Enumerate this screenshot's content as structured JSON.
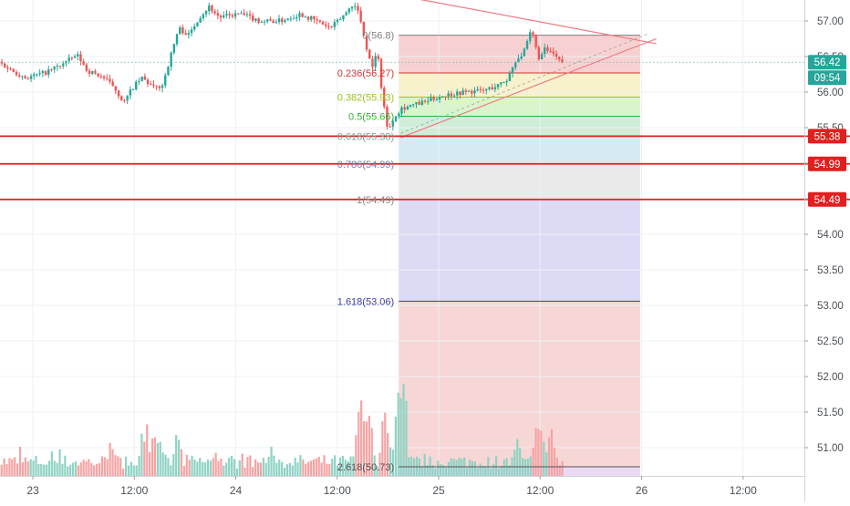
{
  "chart_data": {
    "type": "candlestick",
    "title": "",
    "xlabel": "",
    "ylabel": "",
    "ylim": [
      50.6,
      57.35
    ],
    "grid": true,
    "x_ticks": [
      {
        "label": "23",
        "t": 0.167
      },
      {
        "label": "12:00",
        "t": 0.667
      },
      {
        "label": "24",
        "t": 1.167
      },
      {
        "label": "12:00",
        "t": 1.667
      },
      {
        "label": "25",
        "t": 2.167
      },
      {
        "label": "12:00",
        "t": 2.667
      },
      {
        "label": "26",
        "t": 3.167
      },
      {
        "label": "12:00",
        "t": 3.667
      }
    ],
    "y_ticks": [
      "57.00",
      "56.50",
      "56.00",
      "55.50",
      "55.00",
      "54.50",
      "54.00",
      "53.50",
      "53.00",
      "52.50",
      "52.00",
      "51.50",
      "51.00"
    ],
    "price_anchors": [
      [
        0.0,
        56.45
      ],
      [
        0.08,
        56.3
      ],
      [
        0.15,
        56.2
      ],
      [
        0.25,
        56.28
      ],
      [
        0.33,
        56.4
      ],
      [
        0.4,
        56.52
      ],
      [
        0.45,
        56.3
      ],
      [
        0.52,
        56.22
      ],
      [
        0.58,
        56.08
      ],
      [
        0.63,
        55.85
      ],
      [
        0.67,
        56.05
      ],
      [
        0.72,
        56.2
      ],
      [
        0.78,
        56.05
      ],
      [
        0.82,
        56.1
      ],
      [
        0.85,
        56.4
      ],
      [
        0.9,
        56.9
      ],
      [
        0.95,
        56.8
      ],
      [
        1.0,
        57.05
      ],
      [
        1.05,
        57.2
      ],
      [
        1.1,
        57.05
      ],
      [
        1.2,
        57.1
      ],
      [
        1.3,
        57.0
      ],
      [
        1.4,
        57.0
      ],
      [
        1.5,
        57.1
      ],
      [
        1.58,
        57.0
      ],
      [
        1.65,
        56.9
      ],
      [
        1.72,
        57.1
      ],
      [
        1.76,
        57.25
      ],
      [
        1.79,
        57.1
      ],
      [
        1.82,
        56.7
      ],
      [
        1.85,
        56.35
      ],
      [
        1.88,
        56.55
      ],
      [
        1.9,
        56.05
      ],
      [
        1.93,
        55.45
      ],
      [
        1.96,
        55.65
      ],
      [
        2.0,
        55.78
      ],
      [
        2.1,
        55.85
      ],
      [
        2.2,
        55.95
      ],
      [
        2.3,
        56.0
      ],
      [
        2.4,
        56.02
      ],
      [
        2.48,
        56.1
      ],
      [
        2.52,
        56.18
      ],
      [
        2.56,
        56.45
      ],
      [
        2.6,
        56.55
      ],
      [
        2.64,
        56.88
      ],
      [
        2.66,
        56.62
      ],
      [
        2.68,
        56.45
      ],
      [
        2.7,
        56.6
      ],
      [
        2.74,
        56.55
      ],
      [
        2.78,
        56.42
      ]
    ],
    "last_price": "56.42",
    "countdown": "09:54",
    "colors": {
      "up": "#26a69a",
      "down": "#ef5350",
      "up_volume": "#8fd3c4",
      "down_volume": "#f5a3a3",
      "level_line": "#e21f1f",
      "pattern": "#ef7a85"
    },
    "horizontal_levels": [
      {
        "price": 55.38,
        "label": "55.38"
      },
      {
        "price": 54.99,
        "label": "54.99"
      },
      {
        "price": 54.49,
        "label": "54.49"
      }
    ],
    "fibonacci": {
      "t_start": 1.97,
      "t_end": 3.16,
      "levels": [
        {
          "ratio": 0,
          "price": 56.8,
          "label": "0(56.8)",
          "color": "#808080",
          "fill": "#f6c9c9"
        },
        {
          "ratio": 0.236,
          "price": 56.27,
          "label": "0.236(56.27)",
          "color": "#d43535",
          "fill": "#f6f0c2"
        },
        {
          "ratio": 0.382,
          "price": 55.93,
          "label": "0.382(55.93)",
          "color": "#9bc21e",
          "fill": "#d4f2c6"
        },
        {
          "ratio": 0.5,
          "price": 55.66,
          "label": "0.5(55.66)",
          "color": "#32b032",
          "fill": "#c6ebd0"
        },
        {
          "ratio": 0.618,
          "price": 55.38,
          "label": "0.618(55.38)",
          "color": "#7aa39a",
          "fill": "#cfe6f2"
        },
        {
          "ratio": 0.786,
          "price": 54.99,
          "label": "0.786(54.99)",
          "color": "#6f7fb0",
          "fill": "#e6e6e6"
        },
        {
          "ratio": 1,
          "price": 54.49,
          "label": "1(54.49)",
          "color": "#8a8a8a",
          "fill": "#d7d3f3"
        },
        {
          "ratio": 1.618,
          "price": 53.06,
          "label": "1.618(53.06)",
          "color": "#3a3aa5",
          "fill": "#f6cfcf"
        },
        {
          "ratio": 2.618,
          "price": 50.73,
          "label": "2.618(50.73)",
          "color": "#555555",
          "fill": "#e8d2f2"
        }
      ]
    },
    "triangle": {
      "upper": [
        [
          2.08,
          57.3
        ],
        [
          3.24,
          56.68
        ]
      ],
      "lower": [
        [
          1.98,
          55.36
        ],
        [
          3.24,
          56.75
        ]
      ]
    },
    "volume_profile": {
      "t_start": 0.0,
      "t_end": 2.78,
      "spikes": [
        {
          "t": 0.55,
          "level": 0.35
        },
        {
          "t": 0.72,
          "level": 0.55
        },
        {
          "t": 0.78,
          "level": 0.48
        },
        {
          "t": 0.88,
          "level": 0.42
        },
        {
          "t": 1.35,
          "level": 0.3
        },
        {
          "t": 1.78,
          "level": 0.78
        },
        {
          "t": 1.82,
          "level": 1.0
        },
        {
          "t": 1.9,
          "level": 0.65
        },
        {
          "t": 1.97,
          "level": 0.88
        },
        {
          "t": 1.99,
          "level": 1.0
        },
        {
          "t": 2.55,
          "level": 0.4
        },
        {
          "t": 2.66,
          "level": 0.62
        },
        {
          "t": 2.72,
          "level": 0.55
        }
      ]
    }
  }
}
